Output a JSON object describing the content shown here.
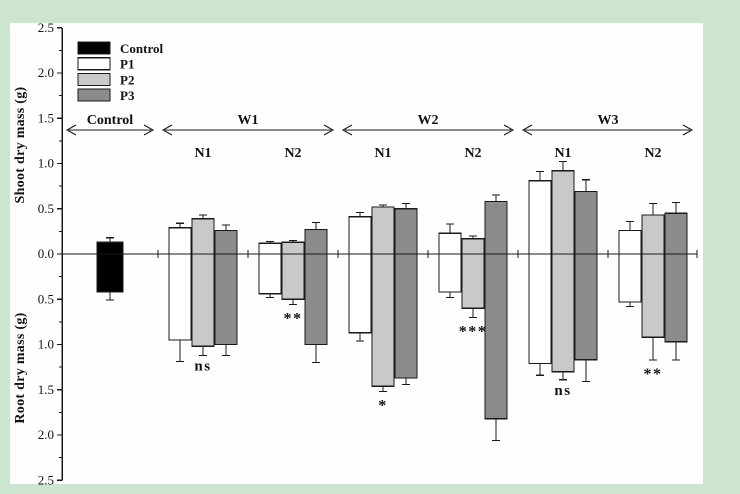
{
  "figure": {
    "background_color": "#cde5cf",
    "panel_color": "#fefefe",
    "axis_color": "#1a1a1a"
  },
  "chart_data": {
    "type": "bar",
    "variant": "mirrored-vertical-bars-with-error-bars",
    "title": "",
    "ylabel_top": "Shoot dry mass (g)",
    "ylabel_bottom": "Root dry mass (g)",
    "yaxis": {
      "max": 2.5,
      "major_step": 0.5,
      "minor_step": 0.25,
      "tick_labels": [
        "2.5",
        "2.0",
        "1.5",
        "1.0",
        "0.5",
        "0.0",
        "0.5",
        "1.0",
        "1.5",
        "2.0",
        "2.5"
      ]
    },
    "grid": false,
    "legend_position": "top-left-inside",
    "legend": [
      {
        "label": "Control",
        "color": "#000000"
      },
      {
        "label": "P1",
        "color": "#ffffff"
      },
      {
        "label": "P2",
        "color": "#c9c9c9"
      },
      {
        "label": "P3",
        "color": "#8b8b8b"
      }
    ],
    "series_colors": {
      "Control": "#000000",
      "P1": "#ffffff",
      "P2": "#c9c9c9",
      "P3": "#8b8b8b"
    },
    "groups": [
      {
        "label": "Control",
        "subgroups": [
          {
            "label": "",
            "sig": "",
            "bars": [
              {
                "series": "Control",
                "shoot": 0.13,
                "shoot_err": 0.05,
                "root": 0.42,
                "root_err": 0.09
              }
            ]
          }
        ]
      },
      {
        "label": "W1",
        "subgroups": [
          {
            "label": "N1",
            "sig": "ns",
            "bars": [
              {
                "series": "P1",
                "shoot": 0.29,
                "shoot_err": 0.05,
                "root": 0.95,
                "root_err": 0.24
              },
              {
                "series": "P2",
                "shoot": 0.39,
                "shoot_err": 0.04,
                "root": 1.02,
                "root_err": 0.1
              },
              {
                "series": "P3",
                "shoot": 0.26,
                "shoot_err": 0.06,
                "root": 1.0,
                "root_err": 0.12
              }
            ]
          },
          {
            "label": "N2",
            "sig": "**",
            "bars": [
              {
                "series": "P1",
                "shoot": 0.12,
                "shoot_err": 0.02,
                "root": 0.44,
                "root_err": 0.04
              },
              {
                "series": "P2",
                "shoot": 0.13,
                "shoot_err": 0.02,
                "root": 0.5,
                "root_err": 0.06
              },
              {
                "series": "P3",
                "shoot": 0.27,
                "shoot_err": 0.08,
                "root": 1.0,
                "root_err": 0.2
              }
            ]
          }
        ]
      },
      {
        "label": "W2",
        "subgroups": [
          {
            "label": "N1",
            "sig": "*",
            "bars": [
              {
                "series": "P1",
                "shoot": 0.41,
                "shoot_err": 0.05,
                "root": 0.87,
                "root_err": 0.09
              },
              {
                "series": "P2",
                "shoot": 0.52,
                "shoot_err": 0.02,
                "root": 1.46,
                "root_err": 0.06
              },
              {
                "series": "P3",
                "shoot": 0.5,
                "shoot_err": 0.06,
                "root": 1.37,
                "root_err": 0.07
              }
            ]
          },
          {
            "label": "N2",
            "sig": "***",
            "bars": [
              {
                "series": "P1",
                "shoot": 0.23,
                "shoot_err": 0.1,
                "root": 0.42,
                "root_err": 0.06
              },
              {
                "series": "P2",
                "shoot": 0.17,
                "shoot_err": 0.03,
                "root": 0.6,
                "root_err": 0.1
              },
              {
                "series": "P3",
                "shoot": 0.58,
                "shoot_err": 0.07,
                "root": 1.82,
                "root_err": 0.24
              }
            ]
          }
        ]
      },
      {
        "label": "W3",
        "subgroups": [
          {
            "label": "N1",
            "sig": "ns",
            "bars": [
              {
                "series": "P1",
                "shoot": 0.81,
                "shoot_err": 0.1,
                "root": 1.21,
                "root_err": 0.13
              },
              {
                "series": "P2",
                "shoot": 0.92,
                "shoot_err": 0.1,
                "root": 1.3,
                "root_err": 0.09
              },
              {
                "series": "P3",
                "shoot": 0.69,
                "shoot_err": 0.13,
                "root": 1.17,
                "root_err": 0.24
              }
            ]
          },
          {
            "label": "N2",
            "sig": "**",
            "bars": [
              {
                "series": "P1",
                "shoot": 0.26,
                "shoot_err": 0.1,
                "root": 0.53,
                "root_err": 0.05
              },
              {
                "series": "P2",
                "shoot": 0.43,
                "shoot_err": 0.13,
                "root": 0.92,
                "root_err": 0.25
              },
              {
                "series": "P3",
                "shoot": 0.45,
                "shoot_err": 0.12,
                "root": 0.97,
                "root_err": 0.2
              }
            ]
          }
        ]
      }
    ]
  }
}
